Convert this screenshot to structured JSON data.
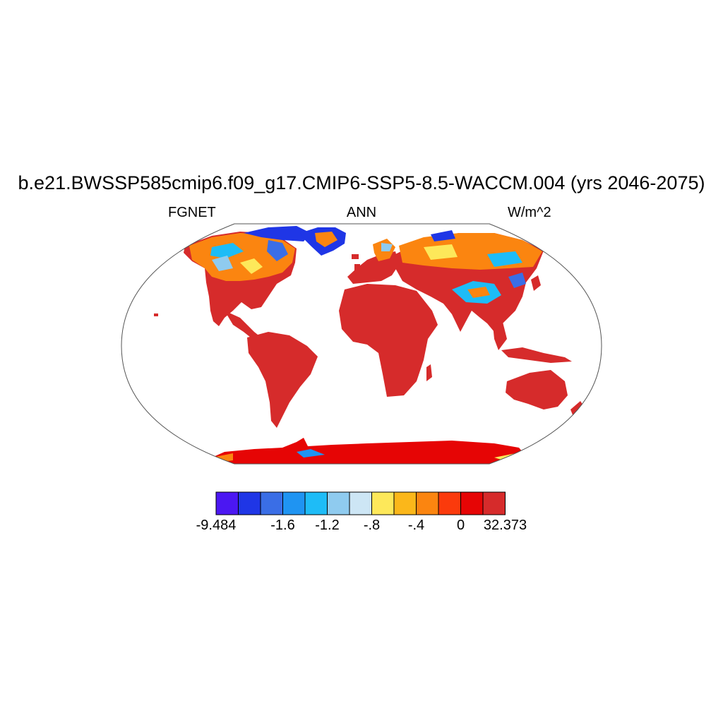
{
  "title": "b.e21.BWSSP585cmip6.f09_g17.CMIP6-SSP5-8.5-WACCM.004 (yrs 2046-2075)",
  "subtitles": {
    "left": "FGNET",
    "center": "ANN",
    "right": "W/m^2"
  },
  "colorbar": {
    "colors": [
      "#4b17f2",
      "#1f36e6",
      "#3a6ee6",
      "#1f94f2",
      "#1ebcf7",
      "#8fcbef",
      "#cde6f5",
      "#fde85a",
      "#fbb71a",
      "#fb8510",
      "#fb3a0c",
      "#e60505",
      "#d62b2b"
    ],
    "labels": [
      "-9.484",
      "-1.6",
      "-1.2",
      "-.8",
      "-.4",
      "0",
      "32.373"
    ],
    "label_boxes": [
      0,
      3,
      5,
      7,
      9,
      11,
      13
    ]
  },
  "map": {
    "projection": "Robinson",
    "land_color": "#d62b2b",
    "antarctica_color": "#e60505"
  }
}
